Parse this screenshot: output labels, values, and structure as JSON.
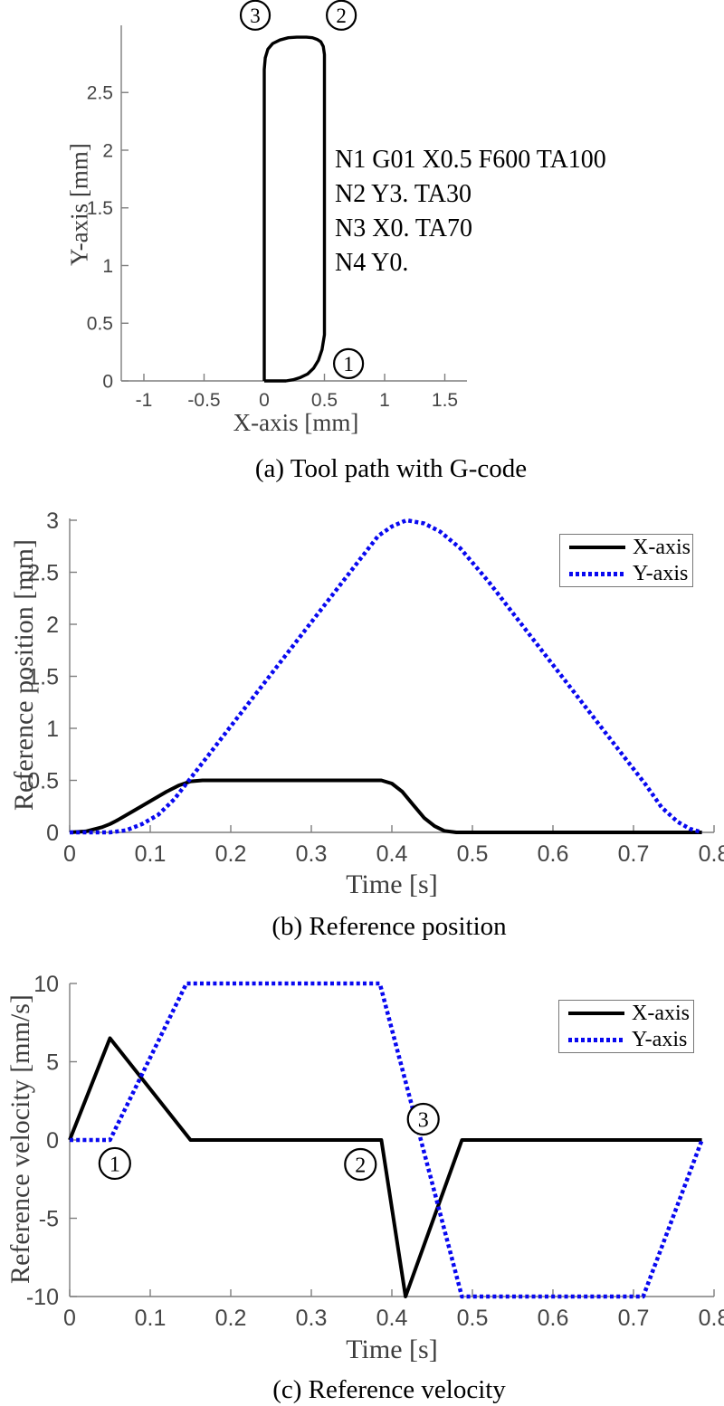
{
  "colors": {
    "x_series": "#000000",
    "y_series": "#0808f0",
    "spine": "#7e7e7e",
    "tick_label": "#454545",
    "axis_label": "#3d3d3d",
    "caption": "#000000"
  },
  "chart_data": [
    {
      "id": "a",
      "type": "line",
      "title": "(a) Tool path with G-code",
      "xlabel": "X-axis [mm]",
      "ylabel": "Y-axis [mm]",
      "xlim": [
        -1.19,
        1.69
      ],
      "ylim": [
        0,
        3.09
      ],
      "xticks": [
        -1,
        -0.5,
        0,
        0.5,
        1,
        1.5
      ],
      "yticks": [
        0,
        0.5,
        1,
        1.5,
        2,
        2.5
      ],
      "grid": false,
      "gcode": [
        "N1 G01 X0.5 F600 TA100",
        "N2 Y3. TA30",
        "N3 X0. TA70",
        "N4 Y0."
      ],
      "markers": [
        {
          "label": "3",
          "x": -0.075,
          "y": 3.17
        },
        {
          "label": "2",
          "x": 0.64,
          "y": 3.17
        },
        {
          "label": "1",
          "x": 0.7,
          "y": 0.15
        }
      ],
      "series": [
        {
          "name": "Tool path",
          "color": "#000000",
          "style": "solid",
          "points": [
            [
              0,
              0
            ],
            [
              0.18,
              0
            ],
            [
              0.24,
              0.01
            ],
            [
              0.3,
              0.03
            ],
            [
              0.36,
              0.06
            ],
            [
              0.41,
              0.11
            ],
            [
              0.45,
              0.18
            ],
            [
              0.48,
              0.27
            ],
            [
              0.5,
              0.4
            ],
            [
              0.5,
              2.83
            ],
            [
              0.49,
              2.9
            ],
            [
              0.47,
              2.94
            ],
            [
              0.44,
              2.96
            ],
            [
              0.4,
              2.975
            ],
            [
              0.35,
              2.98
            ],
            [
              0.27,
              2.98
            ],
            [
              0.2,
              2.975
            ],
            [
              0.13,
              2.955
            ],
            [
              0.07,
              2.925
            ],
            [
              0.03,
              2.875
            ],
            [
              0.008,
              2.8
            ],
            [
              0,
              2.7
            ],
            [
              0,
              0
            ]
          ]
        }
      ]
    },
    {
      "id": "b",
      "type": "line",
      "title": "(b) Reference position",
      "xlabel": "Time [s]",
      "ylabel": "Reference position [mm]",
      "xlim": [
        0,
        0.8
      ],
      "ylim": [
        0,
        3
      ],
      "xticks": [
        0,
        0.1,
        0.2,
        0.3,
        0.4,
        0.5,
        0.6,
        0.7,
        0.8
      ],
      "yticks": [
        0,
        0.5,
        1,
        1.5,
        2,
        2.5,
        3
      ],
      "grid": false,
      "legend_position": "upper right",
      "series": [
        {
          "name": "X-axis",
          "color": "#000000",
          "style": "solid",
          "points": [
            [
              0,
              0
            ],
            [
              0.02,
              0.01
            ],
            [
              0.04,
              0.05
            ],
            [
              0.05,
              0.08
            ],
            [
              0.06,
              0.12
            ],
            [
              0.08,
              0.21
            ],
            [
              0.1,
              0.3
            ],
            [
              0.12,
              0.39
            ],
            [
              0.135,
              0.45
            ],
            [
              0.15,
              0.49
            ],
            [
              0.165,
              0.5
            ],
            [
              0.387,
              0.5
            ],
            [
              0.4,
              0.47
            ],
            [
              0.413,
              0.39
            ],
            [
              0.427,
              0.26
            ],
            [
              0.44,
              0.14
            ],
            [
              0.453,
              0.06
            ],
            [
              0.465,
              0.015
            ],
            [
              0.48,
              0
            ],
            [
              0.785,
              0
            ]
          ]
        },
        {
          "name": "Y-axis",
          "color": "#0808f0",
          "style": "dotted",
          "points": [
            [
              0,
              0
            ],
            [
              0.05,
              0
            ],
            [
              0.07,
              0.02
            ],
            [
              0.09,
              0.08
            ],
            [
              0.11,
              0.17
            ],
            [
              0.13,
              0.32
            ],
            [
              0.145,
              0.47
            ],
            [
              0.175,
              0.77
            ],
            [
              0.2,
              1.02
            ],
            [
              0.25,
              1.52
            ],
            [
              0.3,
              2.02
            ],
            [
              0.35,
              2.52
            ],
            [
              0.383,
              2.85
            ],
            [
              0.4,
              2.94
            ],
            [
              0.418,
              3.0
            ],
            [
              0.44,
              2.97
            ],
            [
              0.46,
              2.89
            ],
            [
              0.485,
              2.73
            ],
            [
              0.52,
              2.41
            ],
            [
              0.56,
              2.01
            ],
            [
              0.6,
              1.61
            ],
            [
              0.65,
              1.11
            ],
            [
              0.7,
              0.61
            ],
            [
              0.715,
              0.46
            ],
            [
              0.735,
              0.24
            ],
            [
              0.755,
              0.1
            ],
            [
              0.77,
              0.035
            ],
            [
              0.785,
              0
            ]
          ]
        }
      ]
    },
    {
      "id": "c",
      "type": "line",
      "title": "(c) Reference velocity",
      "xlabel": "Time [s]",
      "ylabel": "Reference velocity [mm/s]",
      "xlim": [
        0,
        0.8
      ],
      "ylim": [
        -10,
        10
      ],
      "xticks": [
        0,
        0.1,
        0.2,
        0.3,
        0.4,
        0.5,
        0.6,
        0.7,
        0.8
      ],
      "yticks": [
        -10,
        -5,
        0,
        5,
        10
      ],
      "grid": false,
      "legend_position": "upper right",
      "markers": [
        {
          "label": "1",
          "x": 0.056,
          "y": -1.5
        },
        {
          "label": "2",
          "x": 0.361,
          "y": -1.56
        },
        {
          "label": "3",
          "x": 0.439,
          "y": 1.33
        }
      ],
      "series": [
        {
          "name": "X-axis",
          "color": "#000000",
          "style": "solid",
          "points": [
            [
              0,
              0
            ],
            [
              0.05,
              6.5
            ],
            [
              0.15,
              0
            ],
            [
              0.387,
              0
            ],
            [
              0.417,
              -10
            ],
            [
              0.487,
              0
            ],
            [
              0.785,
              0
            ]
          ]
        },
        {
          "name": "Y-axis",
          "color": "#0808f0",
          "style": "dotted",
          "points": [
            [
              0,
              0
            ],
            [
              0.05,
              0
            ],
            [
              0.145,
              10
            ],
            [
              0.385,
              10
            ],
            [
              0.487,
              -10
            ],
            [
              0.712,
              -10
            ],
            [
              0.785,
              0
            ]
          ]
        }
      ]
    }
  ]
}
